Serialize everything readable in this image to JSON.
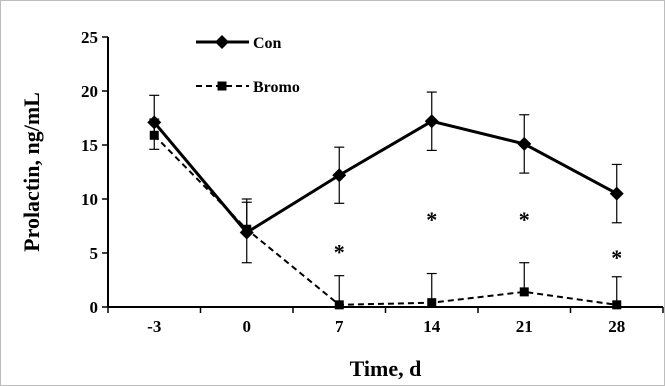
{
  "chart_data": {
    "type": "line",
    "xlabel": "Time, d",
    "ylabel": "Prolactin, ng/mL",
    "categories": [
      "-3",
      "0",
      "7",
      "14",
      "21",
      "28"
    ],
    "ylim": [
      0,
      25
    ],
    "yticks": [
      "0",
      "5",
      "10",
      "15",
      "20",
      "25"
    ],
    "grid": false,
    "legend_position": "top-left",
    "series": [
      {
        "name": "Con",
        "marker": "diamond",
        "line_style": "solid",
        "color": "#000000",
        "values": [
          17.1,
          6.9,
          12.2,
          17.2,
          15.1,
          10.5
        ],
        "error": [
          2.5,
          2.8,
          2.6,
          2.7,
          2.7,
          2.7
        ]
      },
      {
        "name": "Bromo",
        "marker": "square",
        "line_style": "dashed",
        "color": "#000000",
        "values": [
          15.9,
          7.2,
          0.2,
          0.4,
          1.4,
          0.2
        ],
        "error": [
          1.5,
          2.8,
          2.7,
          2.7,
          2.7,
          2.6
        ]
      }
    ],
    "annotations": [
      {
        "text": "*",
        "x": "7",
        "y": 5.5
      },
      {
        "text": "*",
        "x": "14",
        "y": 8.5
      },
      {
        "text": "*",
        "x": "21",
        "y": 8.5
      },
      {
        "text": "*",
        "x": "28",
        "y": 5.0
      }
    ]
  }
}
